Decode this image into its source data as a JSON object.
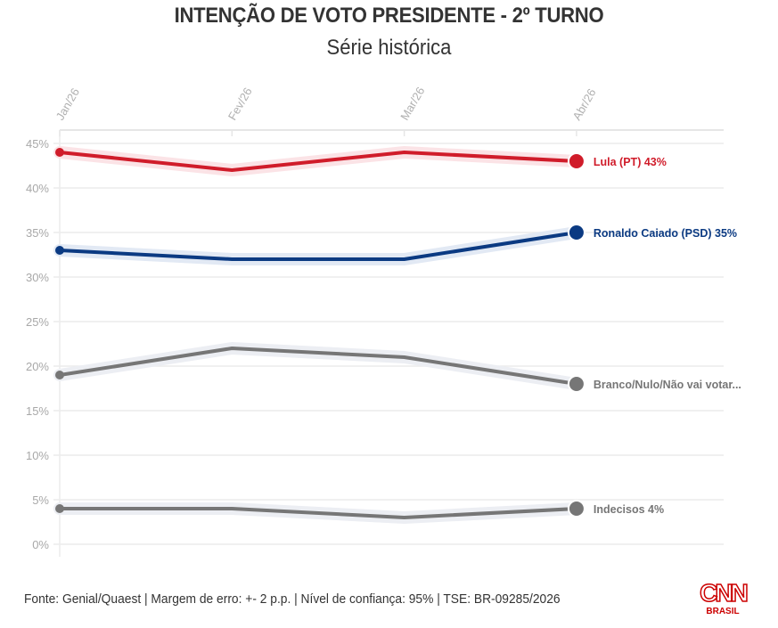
{
  "chart_data": {
    "type": "line",
    "title": "INTENÇÃO DE VOTO PRESIDENTE - 2º TURNO",
    "subtitle": "Série histórica",
    "xlabel": "",
    "ylabel": "",
    "categories": [
      "Jan/26",
      "Fev/26",
      "Mar/26",
      "Abr/26"
    ],
    "ylim": [
      0,
      45
    ],
    "yticks": [
      0,
      5,
      10,
      15,
      20,
      25,
      30,
      35,
      40,
      45
    ],
    "ytick_labels": [
      "0%",
      "5%",
      "10%",
      "15%",
      "20%",
      "25%",
      "30%",
      "35%",
      "40%",
      "45%"
    ],
    "grid": true,
    "legend": "end-of-line labels (right)",
    "series": [
      {
        "name": "Lula (PT)",
        "label": "Lula (PT) 43%",
        "color": "#d01c2a",
        "halo": "#fbe3e6",
        "values": [
          44,
          42,
          44,
          43
        ]
      },
      {
        "name": "Ronaldo Caiado (PSD)",
        "label": "Ronaldo Caiado (PSD) 35%",
        "color": "#0b3a82",
        "halo": "#e2e9f4",
        "values": [
          33,
          32,
          32,
          35
        ]
      },
      {
        "name": "Branco/Nulo/Não vai votar",
        "label": "Branco/Nulo/Não vai votar...",
        "color": "#767676",
        "halo": "#eceef3",
        "values": [
          19,
          22,
          21,
          18
        ]
      },
      {
        "name": "Indecisos",
        "label": "Indecisos 4%",
        "color": "#767676",
        "halo": "#eceef3",
        "values": [
          4,
          4,
          3,
          4
        ]
      }
    ]
  },
  "footer": {
    "source": "Fonte: Genial/Quaest | Margem de erro: +- 2 p.p. | Nível de confiança: 95% | TSE: BR-09285/2026"
  },
  "logo": {
    "name": "CNN",
    "sub": "BRASIL",
    "color": "#cc0000"
  }
}
